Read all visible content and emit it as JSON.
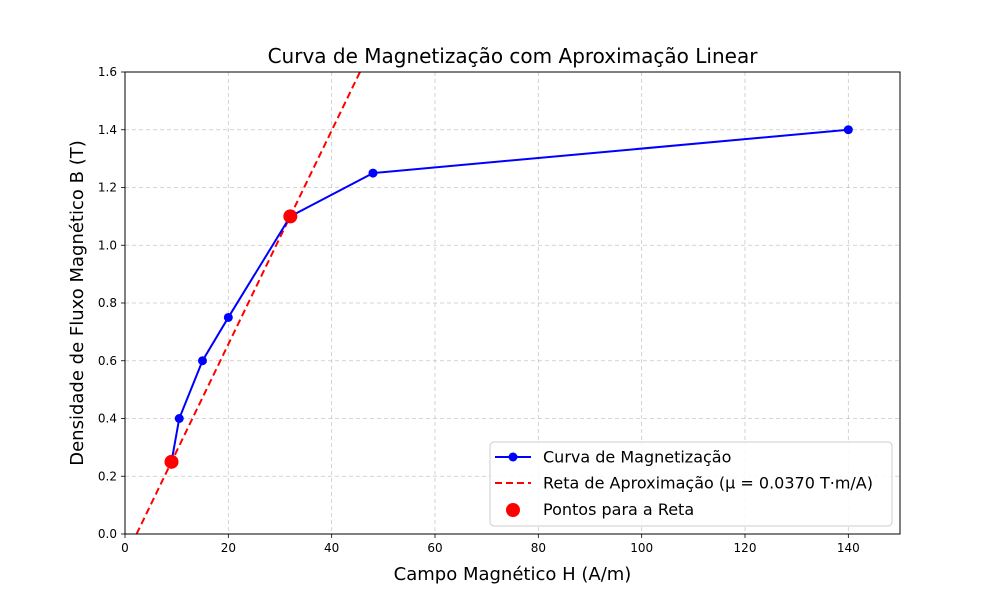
{
  "chart_data": {
    "type": "line",
    "title": "Curva de Magnetização com Aproximação Linear",
    "xlabel": "Campo Magnético H (A/m)",
    "ylabel": "Densidade de Fluxo Magnético B (T)",
    "xlim": [
      0,
      150
    ],
    "ylim": [
      0,
      1.6
    ],
    "x_ticks": [
      0,
      20,
      40,
      60,
      80,
      100,
      120,
      140
    ],
    "y_ticks": [
      0.0,
      0.2,
      0.4,
      0.6,
      0.8,
      1.0,
      1.2,
      1.4,
      1.6
    ],
    "x_tick_labels": [
      "0",
      "20",
      "40",
      "60",
      "80",
      "100",
      "120",
      "140"
    ],
    "y_tick_labels": [
      "0.0",
      "0.2",
      "0.4",
      "0.6",
      "0.8",
      "1.0",
      "1.2",
      "1.4",
      "1.6"
    ],
    "grid": true,
    "legend_position": "bottom-right",
    "series": [
      {
        "name": "Curva de Magnetização",
        "kind": "line-marker",
        "color": "#0000ff",
        "x": [
          9,
          10.5,
          15,
          20,
          32,
          48,
          140
        ],
        "y": [
          0.25,
          0.4,
          0.6,
          0.75,
          1.1,
          1.25,
          1.4
        ]
      },
      {
        "name": "Reta de Aproximação (μ = 0.0370 T·m/A)",
        "kind": "dashed-line",
        "color": "#ff0000",
        "slope": 0.037,
        "x": [
          2.24,
          45.48
        ],
        "y": [
          0.0,
          1.6
        ]
      },
      {
        "name": "Pontos para a Reta",
        "kind": "scatter",
        "color": "#ff0000",
        "x": [
          9,
          32
        ],
        "y": [
          0.25,
          1.1
        ]
      }
    ]
  }
}
